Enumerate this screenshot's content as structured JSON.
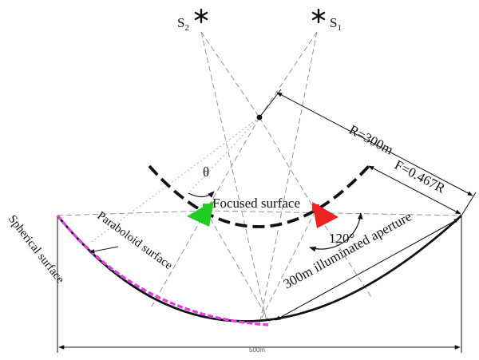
{
  "labels": {
    "s1": "S",
    "s1_sub": "1",
    "s2": "S",
    "s2_sub": "2",
    "radius": "R=300m",
    "focal": "F=0.467R",
    "theta": "θ",
    "focused_surface": "Focused surface",
    "paraboloid_surface": "Paraboloid surface",
    "spherical_surface": "Spherical surface",
    "angle": "120°",
    "aperture": "300m illuminated aperture",
    "width": "500m"
  },
  "colors": {
    "paraboloid": "#e040e0",
    "feed_left": "#22cc22",
    "feed_right": "#ee2222",
    "line": "#111111",
    "dashed": "#888888"
  },
  "icons": {
    "source": "asterisk-star-icon",
    "center": "dot-icon"
  }
}
